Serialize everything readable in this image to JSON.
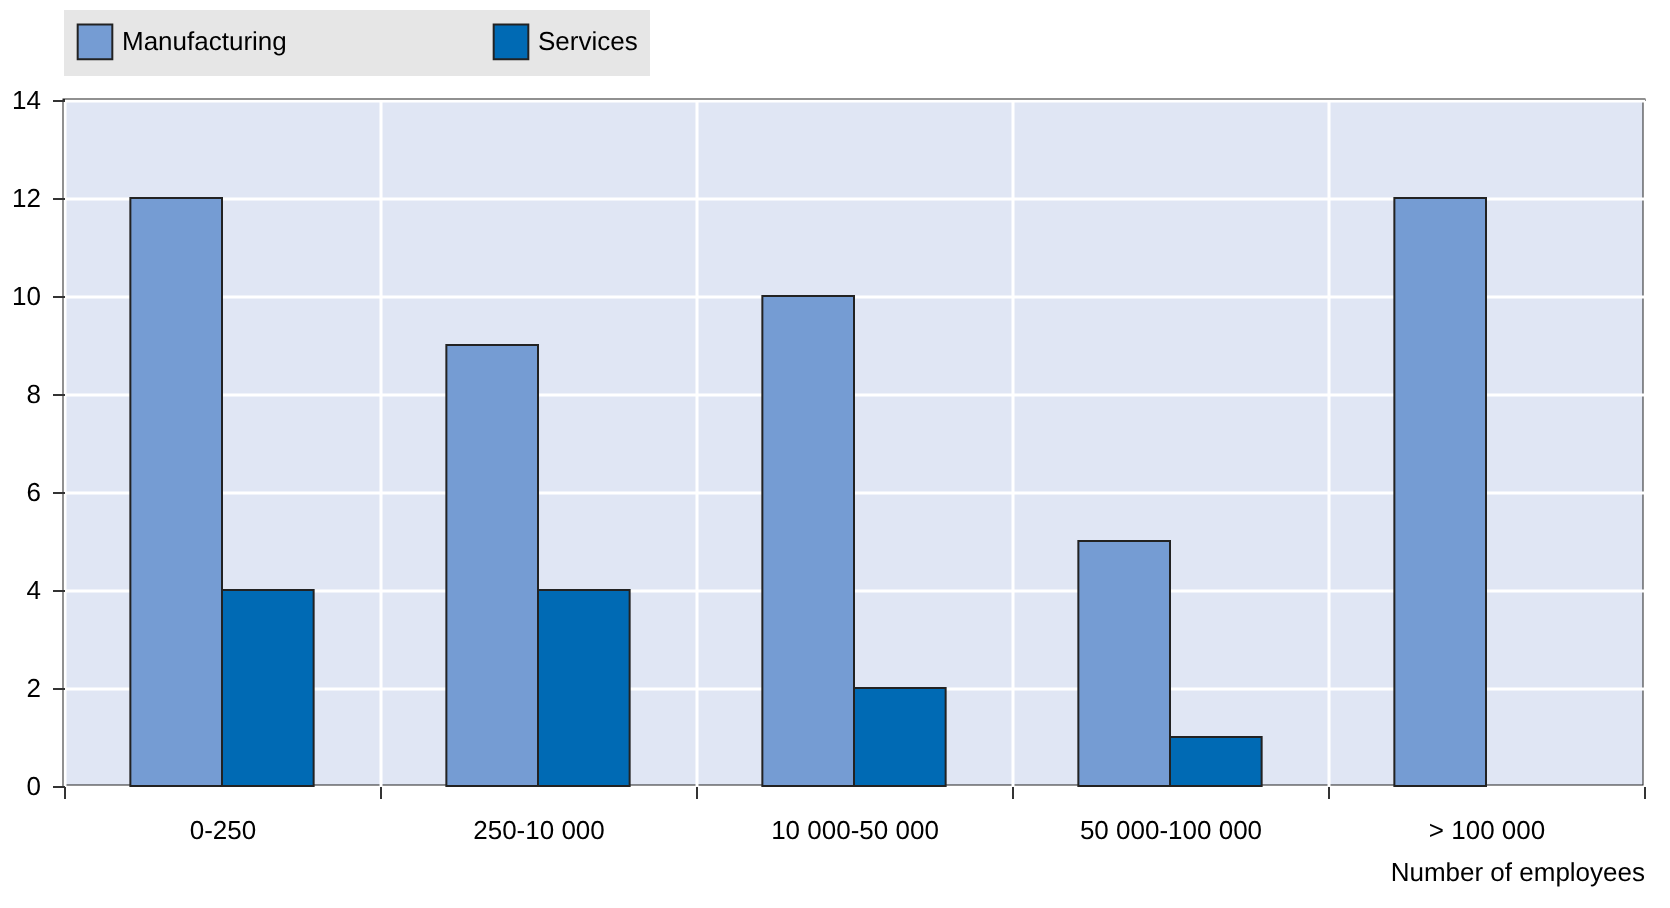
{
  "chart_data": {
    "type": "bar",
    "xlabel": "Number of employees",
    "categories": [
      "0-250",
      "250-10 000",
      "10 000-50 000",
      "50 000-100 000",
      "> 100 000"
    ],
    "series": [
      {
        "name": "Manufacturing",
        "color": "#759cd3",
        "values": [
          12,
          9,
          10,
          5,
          12
        ]
      },
      {
        "name": "Services",
        "color": "#006ab4",
        "values": [
          4,
          4,
          2,
          1,
          0
        ]
      }
    ],
    "ylim": [
      0,
      14
    ],
    "yticks": [
      0,
      2,
      4,
      6,
      8,
      10,
      12,
      14
    ],
    "grid": true,
    "legend": "top"
  }
}
